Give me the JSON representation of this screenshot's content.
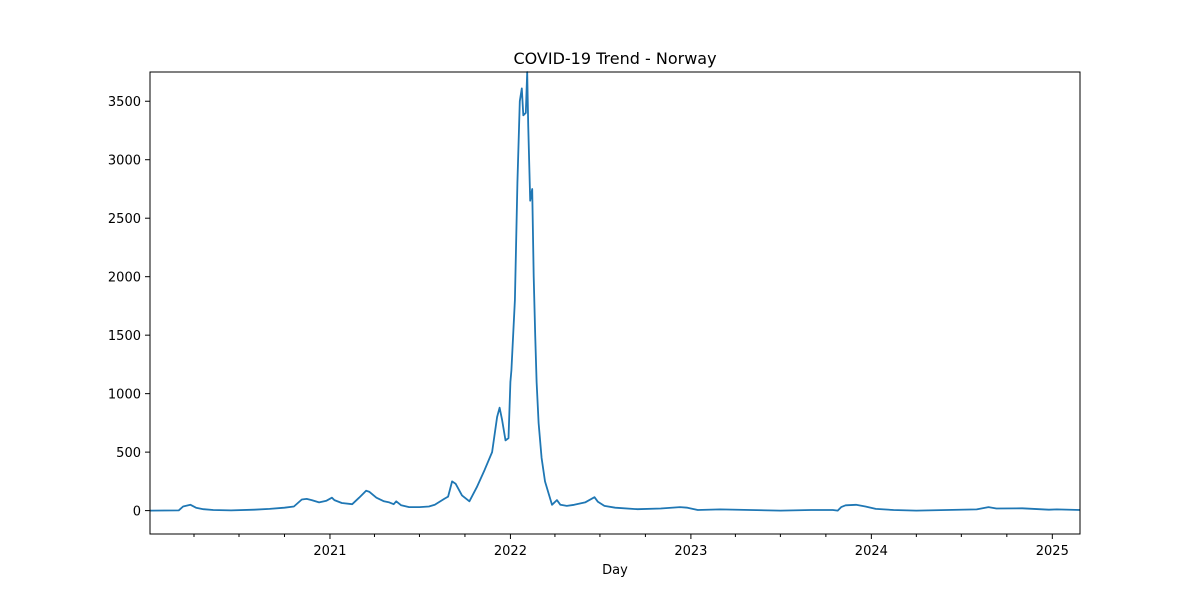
{
  "chart_data": {
    "type": "line",
    "title": "COVID-19 Trend - Norway",
    "xlabel": "Day",
    "ylabel": "",
    "xlim": [
      "2020-01-03",
      "2025-02-26"
    ],
    "ylim": [
      -200,
      3750
    ],
    "y_ticks": [
      0,
      500,
      1000,
      1500,
      2000,
      2500,
      3000,
      3500
    ],
    "x_ticks": [
      {
        "date": "2021-01-01",
        "label": "2021"
      },
      {
        "date": "2022-01-01",
        "label": "2022"
      },
      {
        "date": "2023-01-01",
        "label": "2023"
      },
      {
        "date": "2024-01-01",
        "label": "2024"
      },
      {
        "date": "2025-01-01",
        "label": "2025"
      }
    ],
    "x_minor_ticks": [
      "2020-04-01",
      "2020-07-01",
      "2020-10-01",
      "2021-04-01",
      "2021-07-01",
      "2021-10-01",
      "2022-04-01",
      "2022-07-01",
      "2022-10-01",
      "2023-04-01",
      "2023-07-01",
      "2023-10-01",
      "2024-04-01",
      "2024-07-01",
      "2024-10-01"
    ],
    "grid": false,
    "colors": {
      "line": "#1f77b4"
    },
    "series": [
      {
        "x": [
          "2020-01-03",
          "2020-03-01",
          "2020-03-10",
          "2020-03-25",
          "2020-04-05",
          "2020-04-20",
          "2020-05-10",
          "2020-06-15",
          "2020-08-01",
          "2020-09-01",
          "2020-10-01",
          "2020-10-20",
          "2020-11-05",
          "2020-11-15",
          "2020-11-25",
          "2020-12-10",
          "2020-12-25",
          "2021-01-05",
          "2021-01-10",
          "2021-01-25",
          "2021-02-15",
          "2021-03-01",
          "2021-03-15",
          "2021-03-22",
          "2021-04-05",
          "2021-04-20",
          "2021-05-01",
          "2021-05-10",
          "2021-05-15",
          "2021-05-25",
          "2021-06-10",
          "2021-07-01",
          "2021-07-20",
          "2021-08-01",
          "2021-08-20",
          "2021-08-28",
          "2021-09-05",
          "2021-09-12",
          "2021-09-25",
          "2021-10-10",
          "2021-10-25",
          "2021-11-10",
          "2021-11-25",
          "2021-12-05",
          "2021-12-10",
          "2021-12-15",
          "2021-12-22",
          "2021-12-28",
          "2022-01-01",
          "2022-01-03",
          "2022-01-10",
          "2022-01-15",
          "2022-01-20",
          "2022-01-24",
          "2022-01-27",
          "2022-02-01",
          "2022-02-04",
          "2022-02-06",
          "2022-02-10",
          "2022-02-14",
          "2022-02-17",
          "2022-02-20",
          "2022-02-23",
          "2022-02-27",
          "2022-03-05",
          "2022-03-12",
          "2022-03-19",
          "2022-03-26",
          "2022-04-05",
          "2022-04-12",
          "2022-04-18",
          "2022-04-25",
          "2022-05-10",
          "2022-06-01",
          "2022-06-20",
          "2022-06-27",
          "2022-07-10",
          "2022-08-01",
          "2022-09-15",
          "2022-11-01",
          "2022-12-10",
          "2022-12-25",
          "2023-01-15",
          "2023-03-01",
          "2023-05-01",
          "2023-07-01",
          "2023-09-01",
          "2023-10-15",
          "2023-10-25",
          "2023-11-01",
          "2023-11-10",
          "2023-12-01",
          "2023-12-20",
          "2024-01-10",
          "2024-02-15",
          "2024-04-01",
          "2024-06-01",
          "2024-08-01",
          "2024-08-25",
          "2024-09-10",
          "2024-11-01",
          "2024-12-25",
          "2025-01-10",
          "2025-02-26"
        ],
        "y": [
          0,
          2,
          35,
          50,
          25,
          12,
          5,
          2,
          8,
          15,
          25,
          35,
          95,
          100,
          90,
          70,
          85,
          110,
          90,
          65,
          55,
          110,
          170,
          160,
          110,
          80,
          70,
          55,
          80,
          45,
          30,
          30,
          35,
          50,
          100,
          120,
          250,
          230,
          130,
          80,
          200,
          350,
          500,
          800,
          880,
          780,
          600,
          620,
          1100,
          1200,
          1800,
          2800,
          3500,
          3610,
          3380,
          3400,
          3750,
          3300,
          2650,
          2750,
          2000,
          1500,
          1100,
          750,
          450,
          250,
          150,
          50,
          90,
          50,
          45,
          40,
          50,
          70,
          115,
          75,
          40,
          25,
          12,
          18,
          30,
          25,
          5,
          10,
          5,
          0,
          5,
          5,
          0,
          30,
          45,
          50,
          35,
          15,
          5,
          0,
          5,
          10,
          30,
          18,
          20,
          8,
          10,
          5
        ]
      }
    ]
  }
}
